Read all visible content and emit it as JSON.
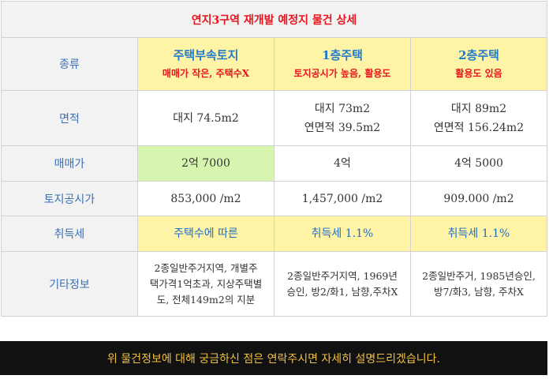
{
  "title": "연지3구역 재개발 예정지 물건 상세",
  "rows": {
    "type": {
      "label": "종류",
      "cols": [
        {
          "main": "주택부속토지",
          "sub": "매매가 작은, 주택수X"
        },
        {
          "main": "1층주택",
          "sub": "토지공시가 높음, 활용도"
        },
        {
          "main": "2층주택",
          "sub": "활용도 있음"
        }
      ]
    },
    "area": {
      "label": "면적",
      "cols": [
        {
          "line1": "대지 74.5m2",
          "line2": ""
        },
        {
          "line1": "대지 73m2",
          "line2": "연면적 39.5m2"
        },
        {
          "line1": "대지 89m2",
          "line2": "연면적 156.24m2"
        }
      ]
    },
    "price": {
      "label": "매매가",
      "cols": [
        "2억 7000",
        "4억",
        "4억 5000"
      ]
    },
    "land_price": {
      "label": "토지공시가",
      "cols": [
        "853,000 /m2",
        "1,457,000 /m2",
        "909.000 /m2"
      ]
    },
    "tax": {
      "label": "취득세",
      "cols": [
        "주택수에 따른",
        "취득세 1.1%",
        "취득세 1.1%"
      ]
    },
    "etc": {
      "label": "기타정보",
      "cols": [
        [
          "2종일반주거지역, 개별주",
          "택가격1억초과, 지상주택별",
          "도, 전체149m2의 지분"
        ],
        [
          "2종일반주거지역, 1969년",
          "승인, 방2/화1, 남향,주차X"
        ],
        [
          "2종일반주거, 1985년승인,",
          "방7/화3, 남향, 주차X"
        ]
      ]
    }
  },
  "footer": "위 물건정보에 대해 궁금하신 점은 연락주시면 자세히 설명드리겠습니다."
}
